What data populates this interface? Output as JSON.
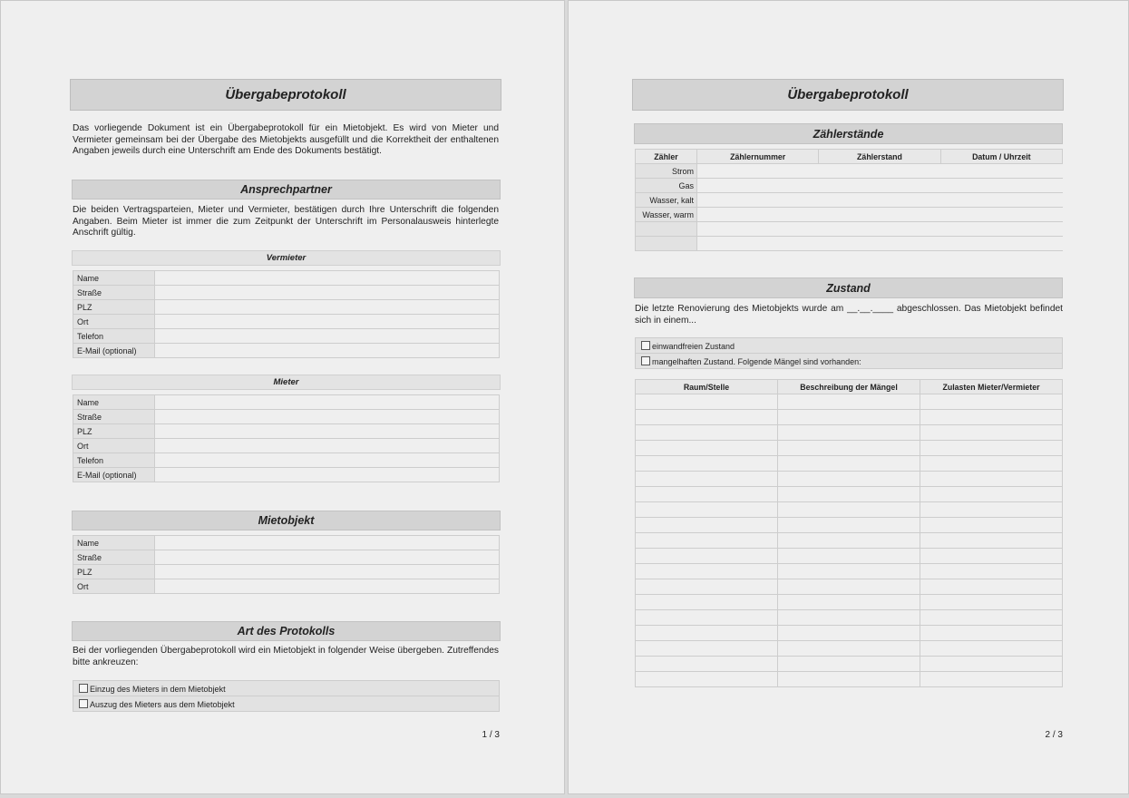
{
  "page1": {
    "title": "Übergabeprotokoll",
    "intro": "Das vorliegende Dokument ist ein Übergabeprotokoll für ein Mietobjekt. Es wird von Mieter und Vermieter gemeinsam bei der Übergabe des Mietobjekts ausgefüllt und die Korrektheit der enthaltenen Angaben jeweils durch eine Unterschrift am Ende des Dokuments bestätigt.",
    "ansprechpartner": {
      "heading": "Ansprechpartner",
      "text": "Die beiden Vertragsparteien, Mieter und Vermieter, bestätigen durch Ihre Unterschrift die folgenden Angaben. Beim Mieter ist immer die zum Zeitpunkt der Unterschrift im Personalausweis hinterlegte Anschrift gültig.",
      "vermieter": {
        "heading": "Vermieter",
        "fields": [
          "Name",
          "Straße",
          "PLZ",
          "Ort",
          "Telefon",
          "E-Mail (optional)"
        ]
      },
      "mieter": {
        "heading": "Mieter",
        "fields": [
          "Name",
          "Straße",
          "PLZ",
          "Ort",
          "Telefon",
          "E-Mail (optional)"
        ]
      }
    },
    "mietobjekt": {
      "heading": "Mietobjekt",
      "fields": [
        "Name",
        "Straße",
        "PLZ",
        "Ort"
      ]
    },
    "art": {
      "heading": "Art des Protokolls",
      "text": "Bei der vorliegenden Übergabeprotokoll wird ein Mietobjekt in folgender Weise übergeben. Zutreffendes bitte ankreuzen:",
      "options": [
        "Einzug des Mieters in dem Mietobjekt",
        "Auszug des Mieters aus dem Mietobjekt"
      ]
    },
    "page_number": "1 / 3"
  },
  "page2": {
    "title": "Übergabeprotokoll",
    "zaehler": {
      "heading": "Zählerstände",
      "columns": [
        "Zähler",
        "Zählernummer",
        "Zählerstand",
        "Datum / Uhrzeit"
      ],
      "rows": [
        "Strom",
        "Gas",
        "Wasser, kalt",
        "Wasser, warm",
        "",
        ""
      ]
    },
    "zustand": {
      "heading": "Zustand",
      "text": "Die letzte Renovierung des Mietobjekts wurde am __.__.____ abgeschlossen. Das Mietobjekt befindet sich in einem...",
      "options": [
        "einwandfreien Zustand",
        "mangelhaften Zustand. Folgende Mängel sind vorhanden:"
      ],
      "columns": [
        "Raum/Stelle",
        "Beschreibung der Mängel",
        "Zulasten Mieter/Vermieter"
      ],
      "empty_rows": 19
    },
    "page_number": "2 / 3"
  }
}
